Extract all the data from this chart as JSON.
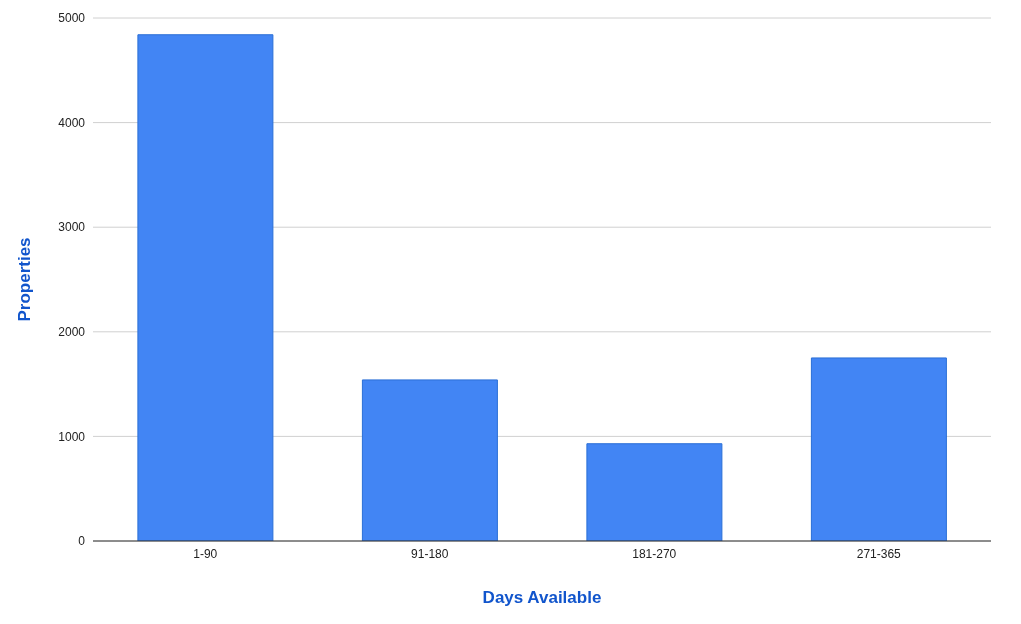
{
  "chart_data": {
    "type": "bar",
    "xlabel": "Days Available",
    "ylabel": "Properties",
    "categories": [
      "1-90",
      "91-180",
      "181-270",
      "271-365"
    ],
    "values": [
      4840,
      1540,
      930,
      1750
    ],
    "color": "#4285f4",
    "ylim": [
      0,
      5000
    ],
    "yticks": [
      0,
      1000,
      2000,
      3000,
      4000,
      5000
    ],
    "grid": "y"
  }
}
